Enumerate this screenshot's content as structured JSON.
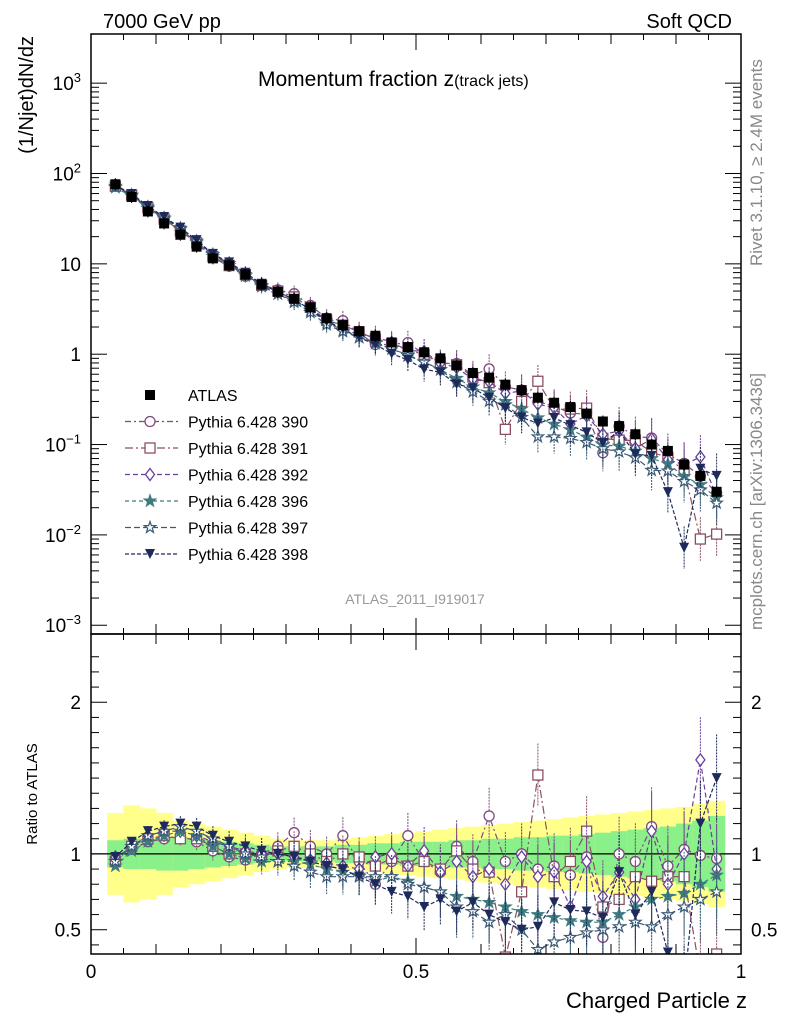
{
  "header": {
    "left": "7000 GeV pp",
    "right": "Soft QCD",
    "side_top": "Rivet 3.1.10, ≥ 2.4M events",
    "side_bottom": "mcplots.cern.ch [arXiv:1306.3436]"
  },
  "chart_data": [
    {
      "type": "scatter",
      "title": "Momentum fraction z",
      "title_sub": "(track jets)",
      "ylabel": "(1/Njet)dN/dz",
      "yscale": "log",
      "ylim": [
        0.0008,
        3500
      ],
      "xlim": [
        0,
        1
      ],
      "watermark": "ATLAS_2011_I919017",
      "yticks": [
        {
          "value": 0.001,
          "base": "10",
          "exp": "−3"
        },
        {
          "value": 0.01,
          "base": "10",
          "exp": "−2"
        },
        {
          "value": 0.1,
          "base": "10",
          "exp": "−1"
        },
        {
          "value": 1,
          "base": "1",
          "exp": ""
        },
        {
          "value": 10,
          "base": "10",
          "exp": ""
        },
        {
          "value": 100,
          "base": "10",
          "exp": "2"
        },
        {
          "value": 1000,
          "base": "10",
          "exp": "3"
        }
      ],
      "legend_placement": "middle-left",
      "x": [
        0.0375,
        0.0625,
        0.0875,
        0.1125,
        0.1375,
        0.1625,
        0.1875,
        0.2125,
        0.2375,
        0.2625,
        0.2875,
        0.3125,
        0.3375,
        0.3625,
        0.3875,
        0.4125,
        0.4375,
        0.4625,
        0.4875,
        0.5125,
        0.5375,
        0.5625,
        0.5875,
        0.6125,
        0.6375,
        0.6625,
        0.6875,
        0.7125,
        0.7375,
        0.7625,
        0.7875,
        0.8125,
        0.8375,
        0.8625,
        0.8875,
        0.9125,
        0.9375,
        0.9625
      ],
      "data": {
        "name": "ATLAS",
        "values": [
          76,
          55,
          38,
          28,
          21,
          15.5,
          11.5,
          9.6,
          7.6,
          5.9,
          4.9,
          4.1,
          3.3,
          2.5,
          2.1,
          1.8,
          1.6,
          1.35,
          1.2,
          1.05,
          0.9,
          0.75,
          0.62,
          0.55,
          0.46,
          0.4,
          0.33,
          0.29,
          0.26,
          0.22,
          0.18,
          0.16,
          0.13,
          0.1,
          0.085,
          0.06,
          0.045,
          0.03
        ],
        "band_inner": [
          0.09,
          0.1,
          0.1,
          0.11,
          0.11,
          0.1,
          0.09,
          0.08,
          0.07,
          0.06,
          0.05,
          0.05,
          0.05,
          0.05,
          0.06,
          0.06,
          0.07,
          0.07,
          0.08,
          0.08,
          0.08,
          0.09,
          0.09,
          0.1,
          0.1,
          0.11,
          0.11,
          0.12,
          0.12,
          0.13,
          0.14,
          0.15,
          0.16,
          0.17,
          0.18,
          0.2,
          0.22,
          0.25
        ],
        "band_outer": [
          0.27,
          0.32,
          0.3,
          0.27,
          0.22,
          0.2,
          0.18,
          0.16,
          0.14,
          0.12,
          0.1,
          0.09,
          0.09,
          0.09,
          0.1,
          0.11,
          0.12,
          0.13,
          0.14,
          0.15,
          0.16,
          0.17,
          0.18,
          0.19,
          0.2,
          0.21,
          0.22,
          0.23,
          0.24,
          0.25,
          0.26,
          0.27,
          0.28,
          0.29,
          0.3,
          0.31,
          0.33,
          0.35
        ]
      }
    },
    {
      "type": "scatter",
      "ylabel": "Ratio to ATLAS",
      "xlabel": "Charged Particle z",
      "ylim": [
        0.34,
        2.45
      ],
      "xlim": [
        0,
        1
      ],
      "yticks": [
        "0.5",
        "1",
        "2"
      ],
      "xticks": [
        "0",
        "0.5",
        "1"
      ],
      "series": [
        {
          "name": "Pythia 6.428 390",
          "color": "#7d4a7d",
          "marker": "circle-open",
          "dash": "6,3,2,3",
          "ratios": [
            0.97,
            1.03,
            1.08,
            1.1,
            1.12,
            1.08,
            1.02,
            0.98,
            0.96,
            1.0,
            1.05,
            1.14,
            1.05,
            1.0,
            1.12,
            0.95,
            0.8,
            0.95,
            1.12,
            0.95,
            0.88,
            1.05,
            0.95,
            1.25,
            0.95,
            1.0,
            0.9,
            0.92,
            0.86,
            0.98,
            0.45,
            1.0,
            0.95,
            1.18,
            0.92,
            1.03,
            0.99,
            0.97
          ]
        },
        {
          "name": "Pythia 6.428 391",
          "color": "#8a5060",
          "marker": "square-open",
          "dash": "8,3,2,3",
          "ratios": [
            0.95,
            1.05,
            1.1,
            1.12,
            1.1,
            1.1,
            1.05,
            1.0,
            1.0,
            0.98,
            1.02,
            1.05,
            1.0,
            0.95,
            1.0,
            0.98,
            0.92,
            0.97,
            0.92,
            0.95,
            0.9,
            1.02,
            0.9,
            0.88,
            0.32,
            0.75,
            1.52,
            0.85,
            0.95,
            1.15,
            0.65,
            0.7,
            0.85,
            0.82,
            0.85,
            0.85,
            0.2,
            0.34
          ]
        },
        {
          "name": "Pythia 6.428 392",
          "color": "#6b3f9a",
          "marker": "diamond-open",
          "dash": "5,3",
          "ratios": [
            0.98,
            1.04,
            1.12,
            1.15,
            1.15,
            1.12,
            1.08,
            1.05,
            1.02,
            1.0,
            1.0,
            0.98,
            0.96,
            0.94,
            0.92,
            0.9,
            0.98,
            1.0,
            0.92,
            1.02,
            0.88,
            0.95,
            0.85,
            0.9,
            0.8,
            0.98,
            0.85,
            0.88,
            0.65,
            0.95,
            0.72,
            0.88,
            0.7,
            1.15,
            0.8,
            1.0,
            1.62,
            0.9
          ]
        },
        {
          "name": "Pythia 6.428 396",
          "color": "#3f7a80",
          "marker": "star-filled",
          "dash": "4,3",
          "ratios": [
            0.92,
            1.02,
            1.08,
            1.12,
            1.15,
            1.12,
            1.05,
            1.0,
            0.97,
            0.95,
            0.95,
            0.95,
            0.93,
            0.9,
            0.88,
            0.86,
            0.82,
            0.85,
            0.82,
            0.78,
            0.75,
            0.72,
            0.7,
            0.68,
            0.65,
            0.62,
            0.6,
            0.58,
            0.56,
            0.55,
            0.55,
            0.6,
            0.65,
            0.7,
            0.72,
            0.74,
            0.8,
            0.86
          ]
        },
        {
          "name": "Pythia 6.428 397",
          "color": "#3a5a75",
          "marker": "star-open",
          "dash": "6,3",
          "ratios": [
            0.95,
            1.05,
            1.12,
            1.15,
            1.18,
            1.15,
            1.1,
            1.05,
            1.0,
            0.98,
            0.95,
            0.92,
            0.88,
            0.85,
            0.85,
            0.85,
            0.85,
            0.85,
            0.8,
            0.78,
            0.75,
            0.65,
            0.62,
            0.55,
            0.6,
            0.5,
            0.37,
            0.42,
            0.45,
            0.48,
            0.5,
            0.52,
            0.55,
            0.52,
            0.6,
            0.65,
            0.7,
            0.75
          ]
        },
        {
          "name": "Pythia 6.428 398",
          "color": "#1f2a5c",
          "marker": "triangle-down-filled",
          "dash": "4,2",
          "ratios": [
            0.98,
            1.08,
            1.15,
            1.18,
            1.2,
            1.18,
            1.12,
            1.08,
            1.05,
            1.02,
            1.0,
            0.98,
            0.95,
            0.92,
            0.9,
            0.85,
            0.8,
            0.75,
            0.72,
            0.65,
            0.7,
            0.62,
            0.68,
            0.6,
            0.55,
            0.5,
            0.52,
            0.68,
            0.63,
            0.62,
            0.58,
            0.88,
            0.6,
            0.75,
            0.35,
            0.12,
            1.2,
            1.5
          ]
        }
      ]
    }
  ]
}
